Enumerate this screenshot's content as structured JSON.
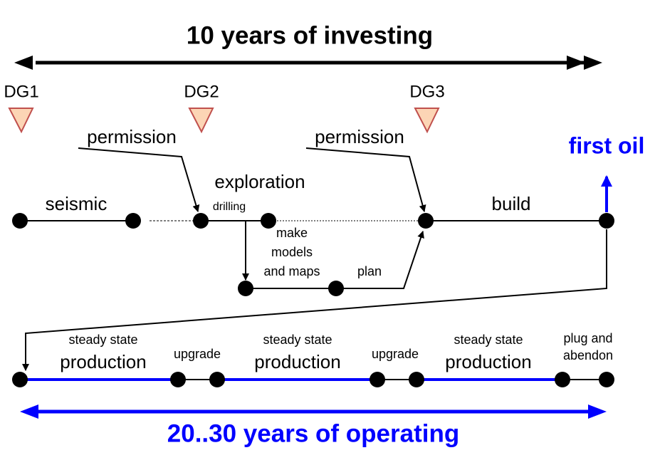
{
  "header": {
    "title": "10 years of investing"
  },
  "gates": [
    "DG1",
    "DG2",
    "DG3"
  ],
  "investing": {
    "permission_1": "permission",
    "permission_2": "permission",
    "first_oil": "first oil",
    "seismic": "seismic",
    "exploration": "exploration",
    "drilling": "drilling",
    "make_models": [
      "make",
      "models",
      "and maps"
    ],
    "plan": "plan",
    "build": "build"
  },
  "operating": {
    "phases": [
      {
        "top": "steady state",
        "main": "production"
      },
      {
        "top": "steady state",
        "main": "production"
      },
      {
        "top": "steady state",
        "main": "production"
      }
    ],
    "upgrades": [
      "upgrade",
      "upgrade"
    ],
    "plug": [
      "plug and",
      "abendon"
    ]
  },
  "footer": {
    "title": "20..30 years of operating"
  }
}
